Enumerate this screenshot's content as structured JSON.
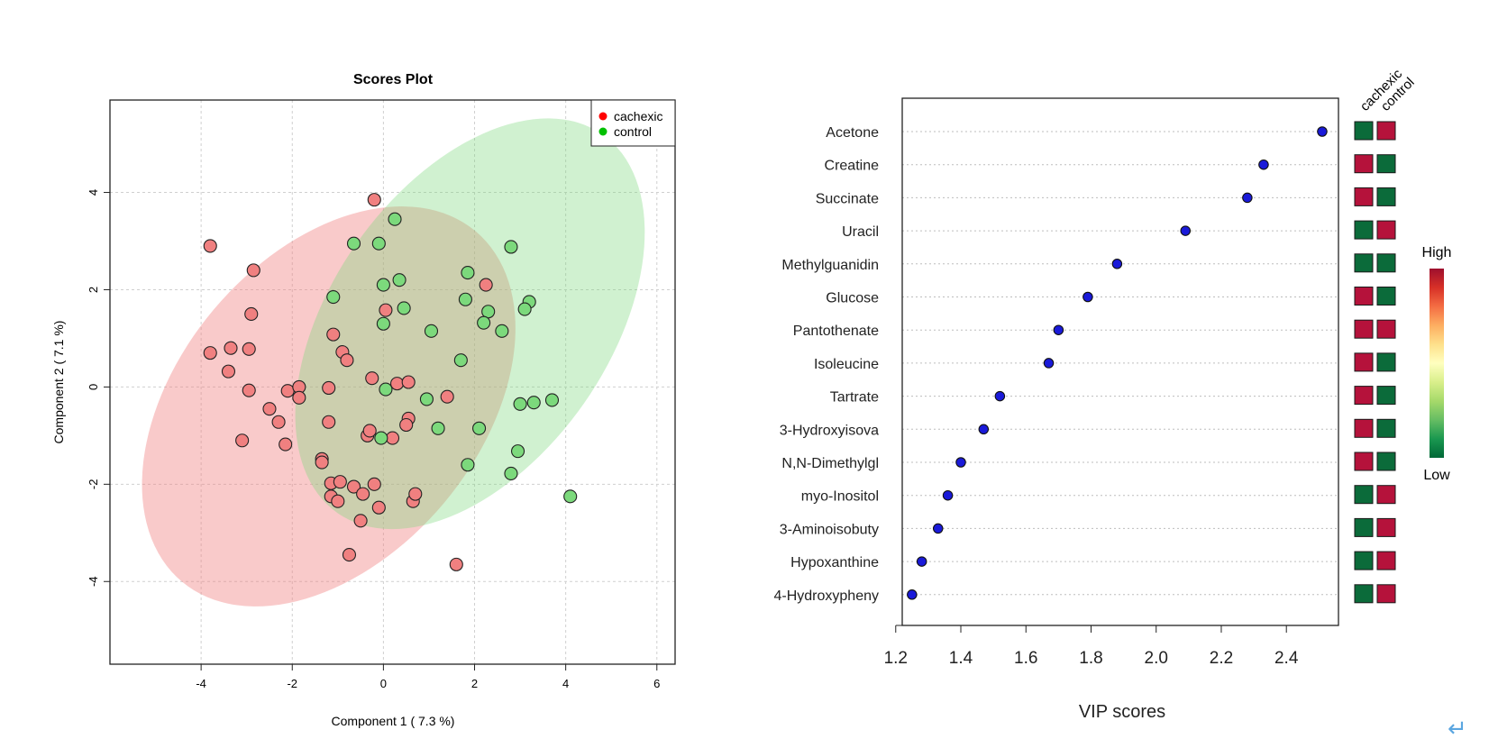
{
  "chart_data": [
    {
      "type": "scatter",
      "title": "Scores Plot",
      "xlabel": "Component 1 ( 7.3 %)",
      "ylabel": "Component 2 ( 7.1 %)",
      "xlim": [
        -6,
        6.4
      ],
      "ylim": [
        -5.7,
        5.9
      ],
      "xticks": [
        "-4",
        "-2",
        "0",
        "2",
        "4",
        "6"
      ],
      "yticks": [
        "-4",
        "-2",
        "0",
        "2",
        "4"
      ],
      "grid": true,
      "legend_position": "top-right",
      "series": [
        {
          "name": "cachexic",
          "color": "#f08080",
          "legend_color": "#ff0000",
          "ellipse": {
            "center": [
              -1.2,
              -0.4
            ],
            "semi_axes": [
              3.3,
              4.7
            ],
            "angle_deg": 40
          },
          "points": [
            [
              -0.2,
              3.85
            ],
            [
              -3.8,
              2.9
            ],
            [
              -2.85,
              2.4
            ],
            [
              -2.9,
              1.5
            ],
            [
              -3.8,
              0.7
            ],
            [
              -3.35,
              0.8
            ],
            [
              -2.95,
              0.78
            ],
            [
              -3.4,
              0.32
            ],
            [
              -2.95,
              -0.07
            ],
            [
              -2.1,
              -0.08
            ],
            [
              -1.85,
              0.0
            ],
            [
              -1.85,
              -0.22
            ],
            [
              -2.5,
              -0.45
            ],
            [
              -2.3,
              -0.72
            ],
            [
              -3.1,
              -1.1
            ],
            [
              -2.15,
              -1.18
            ],
            [
              -1.2,
              -0.02
            ],
            [
              -1.2,
              -0.72
            ],
            [
              -1.1,
              1.08
            ],
            [
              -0.9,
              0.72
            ],
            [
              -0.8,
              0.55
            ],
            [
              -0.25,
              0.18
            ],
            [
              0.05,
              1.58
            ],
            [
              0.3,
              0.07
            ],
            [
              0.55,
              0.1
            ],
            [
              0.55,
              -0.65
            ],
            [
              0.5,
              -0.78
            ],
            [
              0.2,
              -1.05
            ],
            [
              -0.35,
              -1.0
            ],
            [
              -0.3,
              -0.9
            ],
            [
              -1.35,
              -1.48
            ],
            [
              -1.35,
              -1.55
            ],
            [
              -1.15,
              -1.98
            ],
            [
              -1.15,
              -2.25
            ],
            [
              -0.95,
              -1.95
            ],
            [
              -1.0,
              -2.35
            ],
            [
              -0.65,
              -2.05
            ],
            [
              -0.45,
              -2.2
            ],
            [
              -0.2,
              -2.0
            ],
            [
              -0.1,
              -2.48
            ],
            [
              -0.5,
              -2.75
            ],
            [
              -0.75,
              -3.45
            ],
            [
              0.65,
              -2.35
            ],
            [
              0.7,
              -2.2
            ],
            [
              1.4,
              -0.2
            ],
            [
              1.6,
              -3.65
            ],
            [
              2.25,
              2.1
            ]
          ]
        },
        {
          "name": "control",
          "color": "#7cd97c",
          "legend_color": "#00c000",
          "ellipse": {
            "center": [
              1.9,
              1.3
            ],
            "semi_axes": [
              3.05,
              4.75
            ],
            "angle_deg": 35
          },
          "points": [
            [
              0.25,
              3.45
            ],
            [
              -0.65,
              2.95
            ],
            [
              -0.1,
              2.95
            ],
            [
              0.35,
              2.2
            ],
            [
              0.0,
              2.1
            ],
            [
              -1.1,
              1.85
            ],
            [
              0.45,
              1.62
            ],
            [
              0.0,
              1.3
            ],
            [
              1.05,
              1.15
            ],
            [
              1.85,
              2.35
            ],
            [
              2.8,
              2.88
            ],
            [
              1.8,
              1.8
            ],
            [
              2.3,
              1.55
            ],
            [
              2.2,
              1.32
            ],
            [
              2.6,
              1.15
            ],
            [
              3.2,
              1.75
            ],
            [
              3.1,
              1.6
            ],
            [
              1.7,
              0.55
            ],
            [
              0.05,
              -0.05
            ],
            [
              0.95,
              -0.25
            ],
            [
              1.2,
              -0.85
            ],
            [
              2.1,
              -0.85
            ],
            [
              -0.05,
              -1.05
            ],
            [
              3.0,
              -0.35
            ],
            [
              3.3,
              -0.32
            ],
            [
              3.7,
              -0.27
            ],
            [
              2.95,
              -1.32
            ],
            [
              1.85,
              -1.6
            ],
            [
              2.8,
              -1.78
            ],
            [
              4.1,
              -2.25
            ]
          ]
        }
      ]
    },
    {
      "type": "dot",
      "xlabel": "VIP scores",
      "xlim": [
        1.22,
        2.56
      ],
      "xticks": [
        "1.2",
        "1.4",
        "1.6",
        "1.8",
        "2.0",
        "2.2",
        "2.4"
      ],
      "grid": true,
      "point_color": "#1a1ad9",
      "categories": [
        "Acetone",
        "Creatine",
        "Succinate",
        "Uracil",
        "Methylguanidin",
        "Glucose",
        "Pantothenate",
        "Isoleucine",
        "Tartrate",
        "3-Hydroxyisova",
        "N,N-Dimethylgl",
        "myo-Inositol",
        "3-Aminoisobuty",
        "Hypoxanthine",
        "4-Hydroxypheny"
      ],
      "values": [
        2.51,
        2.33,
        2.28,
        2.09,
        1.88,
        1.79,
        1.7,
        1.67,
        1.52,
        1.47,
        1.4,
        1.36,
        1.33,
        1.28,
        1.25
      ],
      "heatmap": {
        "columns": [
          "cachexic",
          "control"
        ],
        "levels": [
          "low",
          "high",
          "high",
          "low",
          "high",
          "low",
          "low",
          "high",
          "low",
          "low",
          "high",
          "low",
          "high",
          "high",
          "high",
          "low",
          "high",
          "low",
          "high",
          "low",
          "high",
          "low",
          "low",
          "high",
          "low",
          "high",
          "low",
          "high",
          "low",
          "high"
        ],
        "high_color": "#b5123b",
        "low_color": "#0b6b3a"
      },
      "colorbar": {
        "high_label": "High",
        "low_label": "Low",
        "colors": [
          "#9e0f2e",
          "#d73027",
          "#f46d43",
          "#fdae61",
          "#fee08b",
          "#ffffbf",
          "#d9ef8b",
          "#a6d96a",
          "#66bd63",
          "#1a9850",
          "#006837"
        ]
      }
    }
  ],
  "footer": {
    "icon": "return-arrow-icon",
    "symbol": "↵"
  }
}
